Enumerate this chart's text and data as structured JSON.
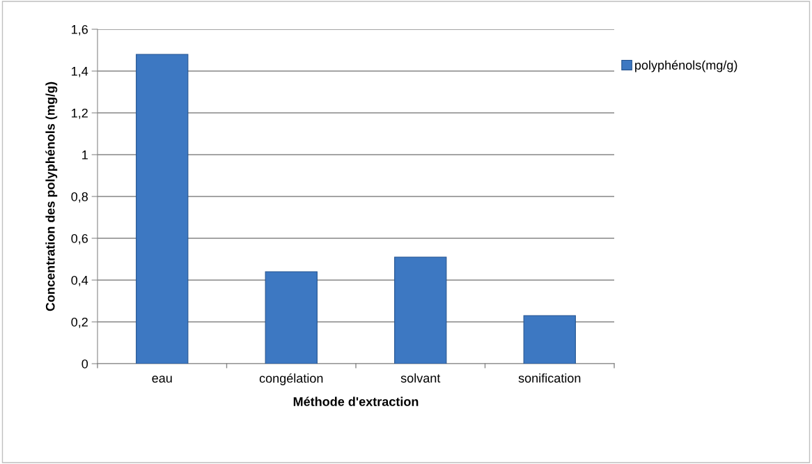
{
  "chart_data": {
    "type": "bar",
    "xlabel": "Méthode d'extraction",
    "ylabel": "Concentration des polyphénols (mg/g)",
    "categories": [
      "eau",
      "congélation",
      "solvant",
      "sonification"
    ],
    "series": [
      {
        "name": "polyphénols(mg/g)",
        "color": "#3d78c2",
        "values": [
          1.48,
          0.44,
          0.51,
          0.23
        ]
      }
    ],
    "ylim": [
      0,
      1.6
    ],
    "yticks": [
      {
        "value": 0,
        "label": "0"
      },
      {
        "value": 0.2,
        "label": "0,2"
      },
      {
        "value": 0.4,
        "label": "0,4"
      },
      {
        "value": 0.6,
        "label": "0,6"
      },
      {
        "value": 0.8,
        "label": "0,8"
      },
      {
        "value": 1,
        "label": "1"
      },
      {
        "value": 1.2,
        "label": "1,2"
      },
      {
        "value": 1.4,
        "label": "1,4"
      },
      {
        "value": 1.6,
        "label": "1,6"
      }
    ],
    "grid": "y",
    "legend": "top right"
  }
}
